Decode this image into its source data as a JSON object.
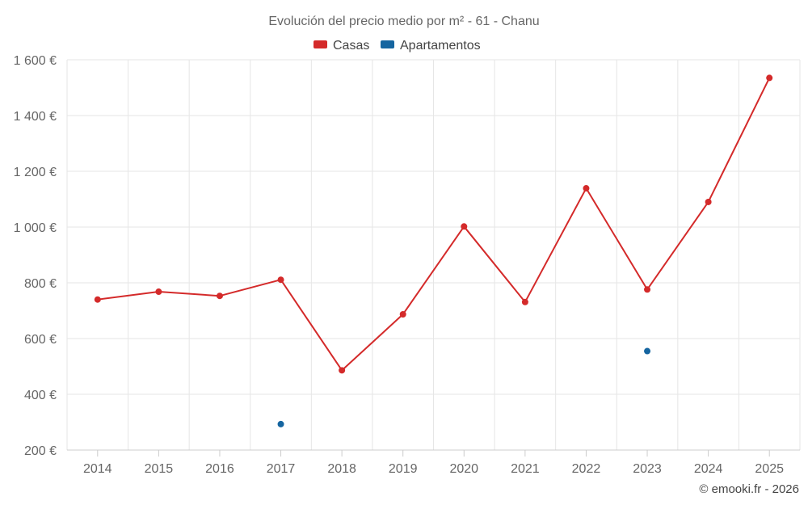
{
  "chart_data": {
    "type": "line",
    "title": "Evolución del precio medio por m² - 61 - Chanu",
    "categories": [
      "2014",
      "2015",
      "2016",
      "2017",
      "2018",
      "2019",
      "2020",
      "2021",
      "2022",
      "2023",
      "2024",
      "2025"
    ],
    "series": [
      {
        "name": "Casas",
        "color": "#d42a2a",
        "values": [
          740,
          768,
          753,
          811,
          486,
          687,
          1002,
          731,
          1139,
          776,
          1090,
          1535
        ]
      },
      {
        "name": "Apartamentos",
        "color": "#1565a0",
        "values": [
          null,
          null,
          null,
          293,
          null,
          null,
          null,
          null,
          null,
          555,
          null,
          null
        ]
      }
    ],
    "ylim": [
      200,
      1600
    ],
    "yticks": [
      200,
      400,
      600,
      800,
      1000,
      1200,
      1400,
      1600
    ],
    "ytick_labels": [
      "200 €",
      "400 €",
      "600 €",
      "800 €",
      "1 000 €",
      "1 200 €",
      "1 400 €",
      "1 600 €"
    ],
    "xlabel": "",
    "ylabel": "",
    "grid": true,
    "legend_position": "top-center"
  },
  "credit": "© emooki.fr - 2026"
}
